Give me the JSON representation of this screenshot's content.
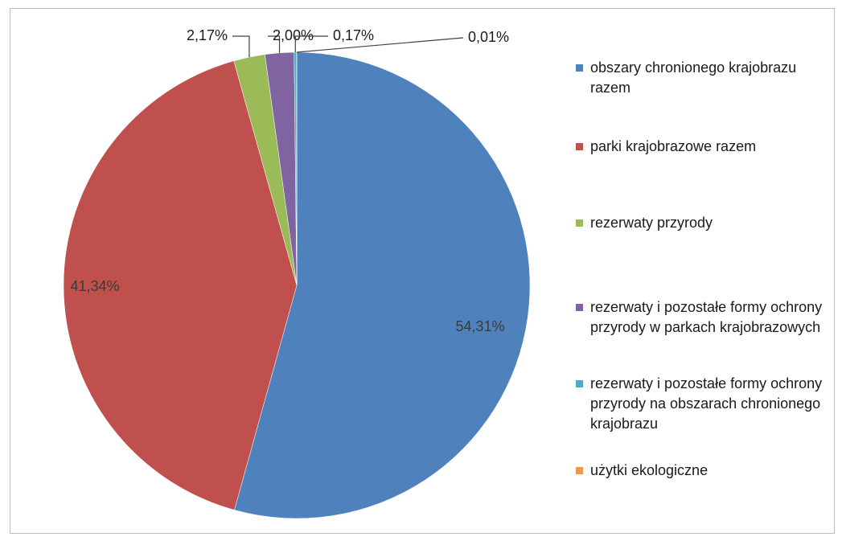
{
  "chart_data": {
    "type": "pie",
    "categories": [
      "obszary chronionego krajobrazu razem",
      "parki krajobrazowe razem",
      "rezerwaty przyrody",
      "rezerwaty i pozostałe formy ochrony przyrody w parkach krajobrazowych",
      "rezerwaty i pozostałe formy ochrony przyrody na obszarach chronionego krajobrazu",
      "użytki ekologiczne"
    ],
    "values": [
      54.31,
      41.34,
      2.17,
      2.0,
      0.17,
      0.01
    ],
    "value_labels": [
      "54,31%",
      "41,34%",
      "2,17%",
      "2,00%",
      "0,17%",
      "0,01%"
    ],
    "colors": [
      "#4f81bd",
      "#c0504d",
      "#9bbb59",
      "#8064a2",
      "#4bacc6",
      "#f79646"
    ],
    "legend": "right"
  }
}
